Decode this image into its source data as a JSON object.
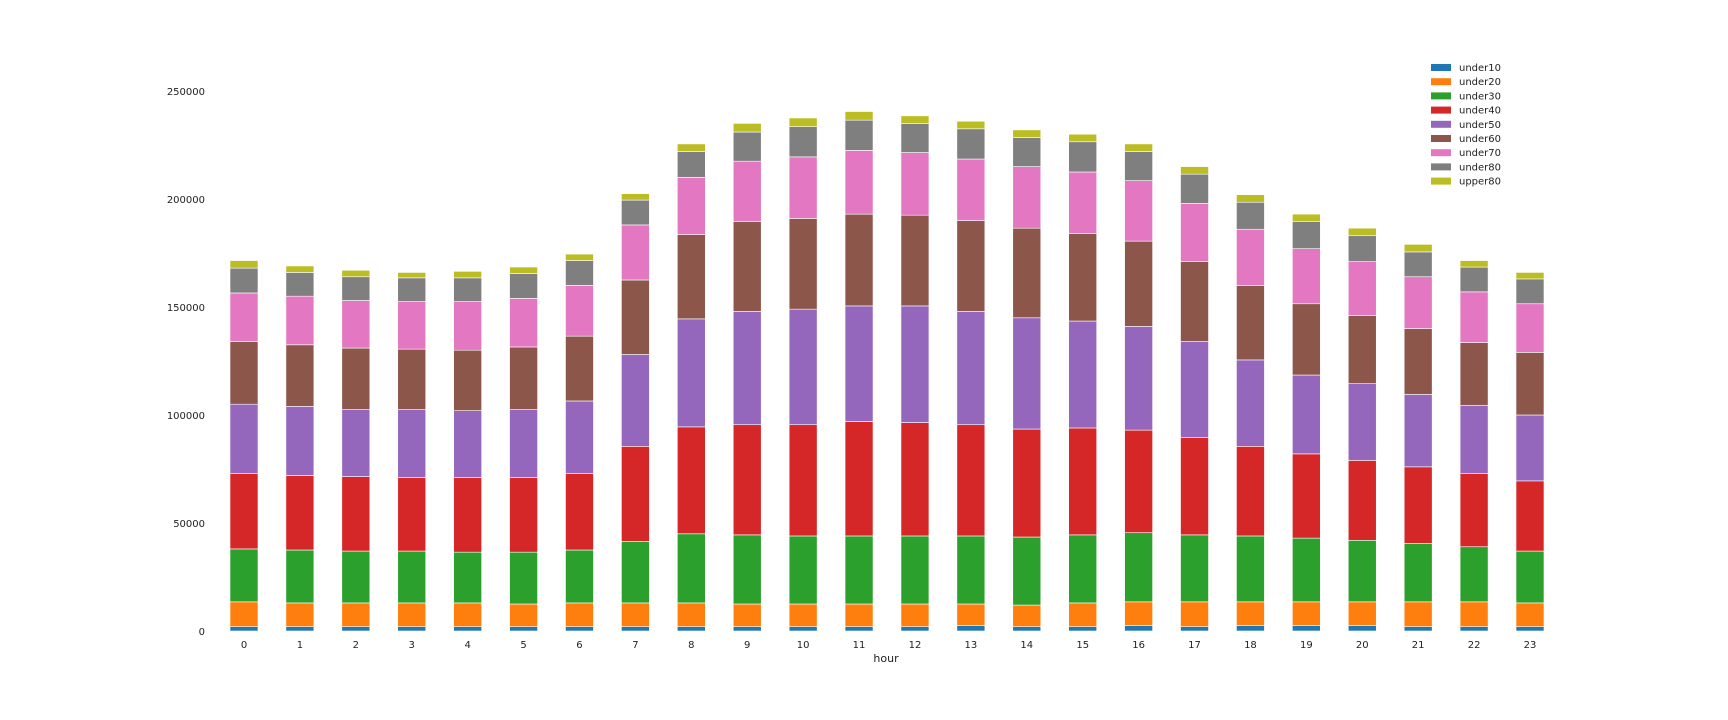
{
  "chart_data": {
    "type": "bar",
    "stacked": true,
    "xlabel": "hour",
    "ylabel": "",
    "ylim": [
      0,
      260000
    ],
    "yticks": [
      0,
      50000,
      100000,
      150000,
      200000,
      250000
    ],
    "grid": false,
    "legend_position": "top-right",
    "categories": [
      "0",
      "1",
      "2",
      "3",
      "4",
      "5",
      "6",
      "7",
      "8",
      "9",
      "10",
      "11",
      "12",
      "13",
      "14",
      "15",
      "16",
      "17",
      "18",
      "19",
      "20",
      "21",
      "22",
      "23"
    ],
    "series": [
      {
        "name": "under10",
        "color": "#1f77b4",
        "values": [
          2000,
          2000,
          2000,
          2000,
          2000,
          2000,
          2000,
          2000,
          2000,
          2000,
          2000,
          2000,
          2000,
          2500,
          2000,
          2000,
          2500,
          2000,
          2500,
          2500,
          2500,
          2000,
          2000,
          2000
        ]
      },
      {
        "name": "under20",
        "color": "#ff7f0e",
        "values": [
          11500,
          11000,
          11000,
          11000,
          11000,
          10500,
          11000,
          11000,
          11000,
          10500,
          10500,
          10500,
          10500,
          10000,
          10000,
          11000,
          11000,
          11500,
          11000,
          11000,
          11000,
          11500,
          11500,
          11000
        ]
      },
      {
        "name": "under30",
        "color": "#2ca02c",
        "values": [
          24500,
          24500,
          24000,
          24000,
          23500,
          24000,
          24500,
          28500,
          32000,
          32000,
          31500,
          31500,
          31500,
          31500,
          31500,
          31500,
          32000,
          31000,
          30500,
          29500,
          28500,
          27000,
          25500,
          24000
        ]
      },
      {
        "name": "under40",
        "color": "#d62728",
        "values": [
          35000,
          34500,
          34500,
          34000,
          34500,
          34500,
          35500,
          44000,
          49500,
          51000,
          51500,
          53000,
          52500,
          51500,
          50000,
          49500,
          47500,
          45000,
          41500,
          39000,
          37000,
          35500,
          34000,
          32500
        ]
      },
      {
        "name": "under50",
        "color": "#9467bd",
        "values": [
          32000,
          32000,
          31000,
          31500,
          31000,
          31500,
          33500,
          42500,
          50000,
          52500,
          53500,
          53500,
          54000,
          52500,
          51500,
          49500,
          48000,
          44500,
          40000,
          36500,
          35500,
          33500,
          31500,
          30500
        ]
      },
      {
        "name": "under60",
        "color": "#8c564b",
        "values": [
          29000,
          28500,
          28500,
          28000,
          28000,
          29000,
          30000,
          34500,
          39000,
          41500,
          42000,
          42500,
          42000,
          42000,
          41500,
          40500,
          39500,
          37000,
          34500,
          33000,
          31500,
          30500,
          29000,
          29000
        ]
      },
      {
        "name": "under70",
        "color": "#e377c2",
        "values": [
          22500,
          22500,
          22000,
          22000,
          22500,
          22500,
          23500,
          25500,
          26500,
          28000,
          28500,
          29500,
          29000,
          28500,
          28500,
          28500,
          28000,
          27000,
          26000,
          25500,
          25000,
          24000,
          23500,
          22500
        ]
      },
      {
        "name": "under80",
        "color": "#7f7f7f",
        "values": [
          11500,
          11000,
          11000,
          11000,
          11000,
          11500,
          11500,
          11500,
          12000,
          13500,
          14000,
          14000,
          13500,
          14000,
          13500,
          14000,
          13500,
          13500,
          12500,
          12500,
          12000,
          11500,
          11500,
          11500
        ]
      },
      {
        "name": "upper80",
        "color": "#bcbd22",
        "values": [
          3500,
          3000,
          3000,
          2500,
          3000,
          3000,
          3000,
          3000,
          3500,
          4000,
          4000,
          4000,
          3500,
          3500,
          3500,
          3500,
          3500,
          3500,
          3500,
          3500,
          3500,
          3500,
          3000,
          3000
        ]
      }
    ]
  }
}
